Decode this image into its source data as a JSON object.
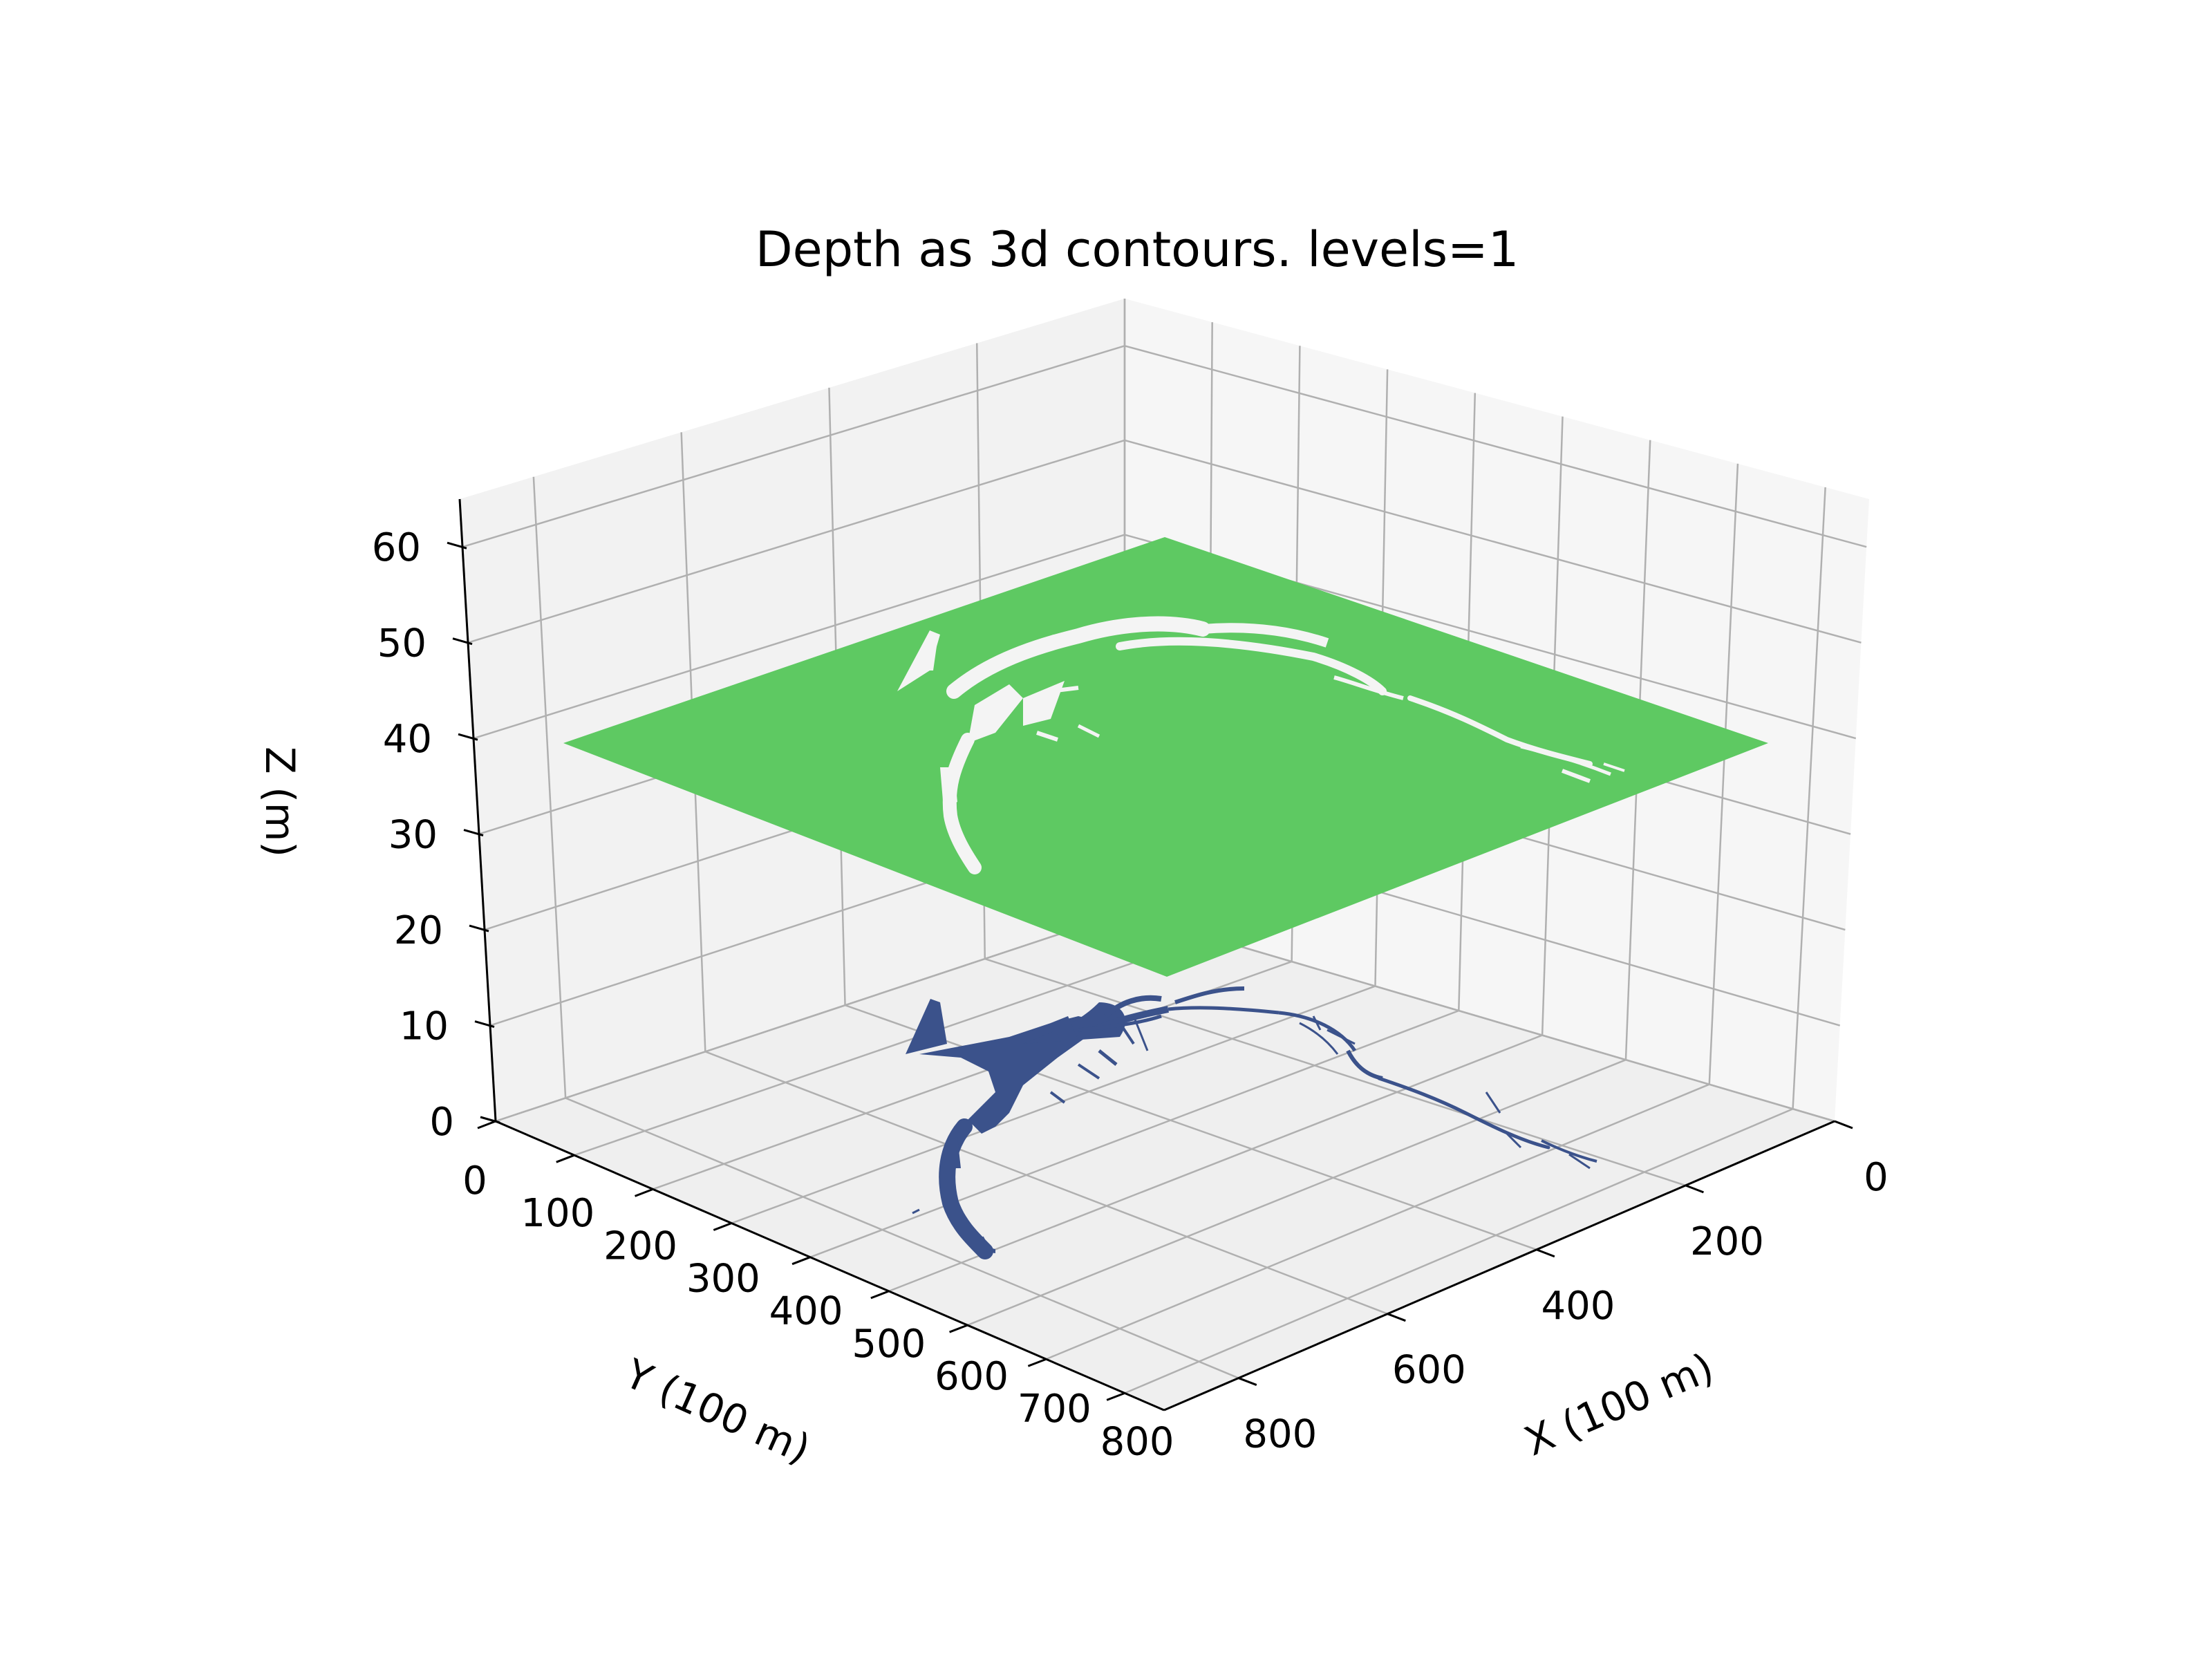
{
  "chart_data": {
    "type": "3d-contour",
    "title": "Depth as 3d contours. levels=1",
    "xlabel": "X (100 m)",
    "ylabel": "Y (100 m)",
    "zlabel": "Z (m)",
    "xlim": [
      0,
      900
    ],
    "ylim": [
      0,
      850
    ],
    "zlim": [
      0,
      65
    ],
    "x_ticks": [
      0,
      200,
      400,
      600,
      800
    ],
    "y_ticks": [
      0,
      100,
      200,
      300,
      400,
      500,
      600,
      700,
      800
    ],
    "z_ticks": [
      0,
      10,
      20,
      30,
      40,
      50,
      60
    ],
    "grid": true,
    "levels": [
      {
        "z": 0,
        "color": "#3b528b",
        "fill": "river network region (dark blue)"
      },
      {
        "z": 40,
        "color": "#5ec962",
        "fill": "land region (green) with river gaps"
      }
    ]
  },
  "colors": {
    "pane": "#f2f2f2",
    "grid": "#b0b0b0",
    "axis": "#000000"
  }
}
